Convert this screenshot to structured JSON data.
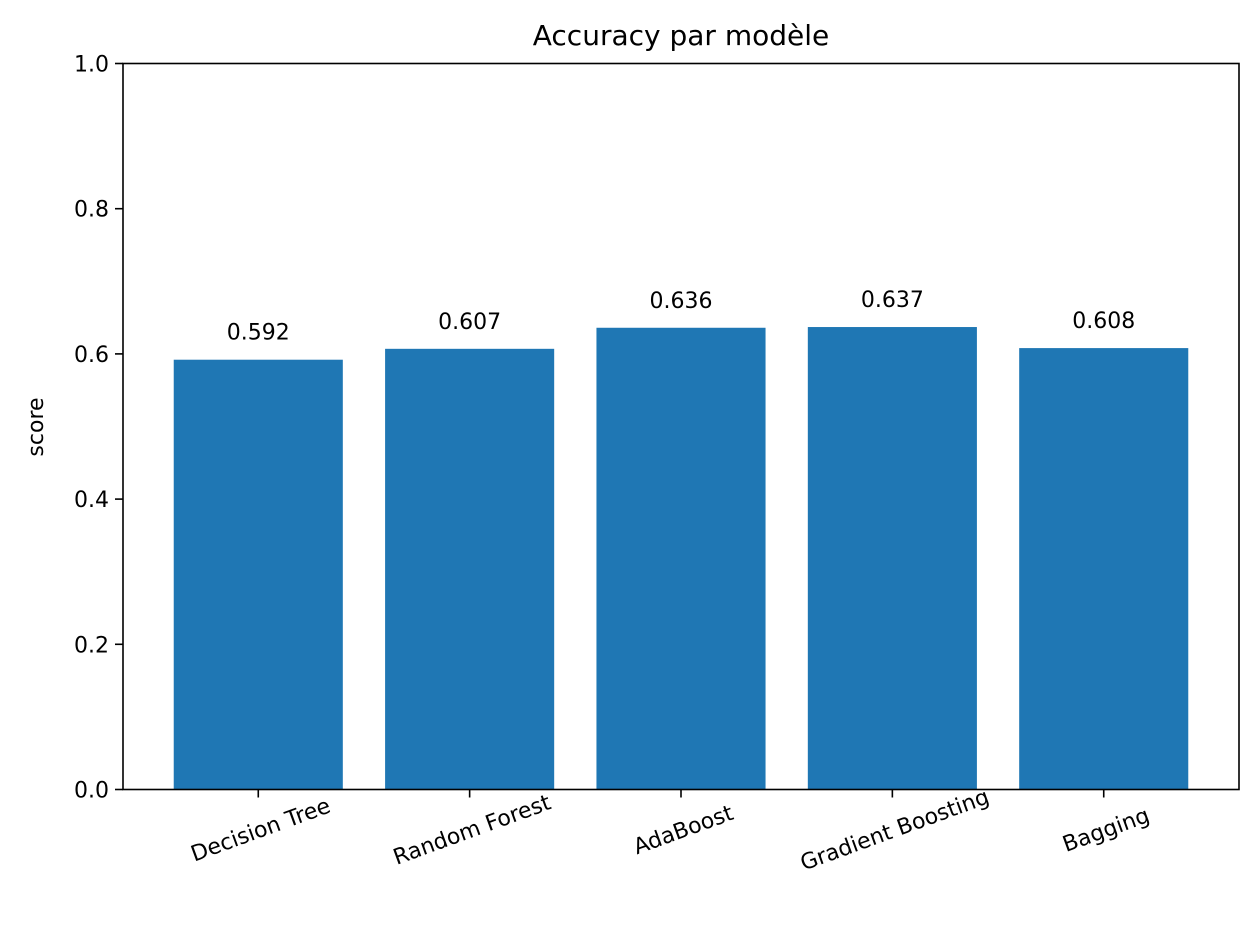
{
  "chart_data": {
    "type": "bar",
    "title": "Accuracy par modèle",
    "xlabel": "",
    "ylabel": "score",
    "categories": [
      "Decision Tree",
      "Random Forest",
      "AdaBoost",
      "Gradient Boosting",
      "Bagging"
    ],
    "values": [
      0.592,
      0.607,
      0.636,
      0.637,
      0.608
    ],
    "value_labels": [
      "0.592",
      "0.607",
      "0.636",
      "0.637",
      "0.608"
    ],
    "ylim": [
      0,
      1
    ],
    "yticks": [
      0.0,
      0.2,
      0.4,
      0.6,
      0.8,
      1.0
    ],
    "ytick_labels": [
      "0.0",
      "0.2",
      "0.4",
      "0.6",
      "0.8",
      "1.0"
    ],
    "grid": false,
    "bar_color": "#1f77b4",
    "xtick_rotation": "tilted"
  }
}
